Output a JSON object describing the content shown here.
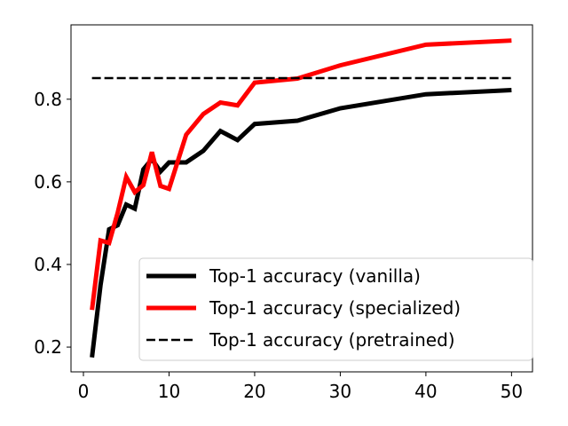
{
  "chart_data": {
    "type": "line",
    "title": "",
    "xlabel": "",
    "ylabel": "",
    "xlim": [
      -1.45,
      52.45
    ],
    "ylim": [
      0.14,
      0.98
    ],
    "xticks": [
      0,
      10,
      20,
      30,
      40,
      50
    ],
    "xtick_labels": [
      "0",
      "10",
      "20",
      "30",
      "40",
      "50"
    ],
    "yticks": [
      0.2,
      0.4,
      0.6,
      0.8
    ],
    "ytick_labels": [
      "0.2",
      "0.4",
      "0.6",
      "0.8"
    ],
    "grid": false,
    "legend_position": "lower right",
    "series": [
      {
        "name": "Top-1 accuracy (vanilla)",
        "color": "#000000",
        "style": "solid",
        "x": [
          1,
          2,
          3,
          4,
          5,
          6,
          7,
          8,
          9,
          10,
          12,
          14,
          16,
          18,
          20,
          25,
          30,
          40,
          50
        ],
        "y": [
          0.175,
          0.35,
          0.485,
          0.495,
          0.545,
          0.535,
          0.63,
          0.655,
          0.625,
          0.647,
          0.647,
          0.675,
          0.723,
          0.701,
          0.74,
          0.748,
          0.778,
          0.812,
          0.822
        ]
      },
      {
        "name": "Top-1 accuracy (specialized)",
        "color": "#ff0000",
        "style": "solid",
        "x": [
          1,
          2,
          3,
          4,
          5,
          6,
          7,
          8,
          9,
          10,
          12,
          14,
          16,
          18,
          20,
          25,
          30,
          40,
          50
        ],
        "y": [
          0.29,
          0.458,
          0.452,
          0.525,
          0.612,
          0.575,
          0.592,
          0.672,
          0.59,
          0.583,
          0.714,
          0.764,
          0.792,
          0.785,
          0.84,
          0.85,
          0.882,
          0.932,
          0.942
        ]
      },
      {
        "name": "Top-1 accuracy (pretrained)",
        "color": "#000000",
        "style": "dashed",
        "x": [
          1,
          50
        ],
        "y": [
          0.851,
          0.851
        ]
      }
    ]
  }
}
